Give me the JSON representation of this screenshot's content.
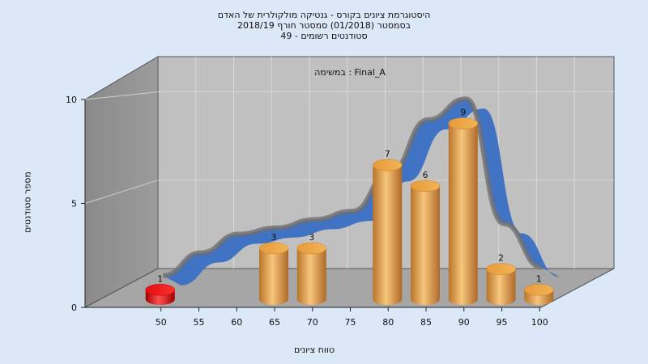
{
  "chart_data": {
    "type": "bar",
    "title_lines": [
      "היסטוגרמת ציונים בקורס - גנטיקה מולקולרית של האדם",
      "בסמסטר  (01/2018)  סמסטר חורף 2018/19",
      "סטודנטים רשומים - 49"
    ],
    "inner_title": "במשימה : Final_A",
    "xlabel": "טווח ציונים",
    "ylabel": "מספר סטודנטים",
    "x_ticks": [
      "50",
      "55",
      "60",
      "65",
      "70",
      "75",
      "80",
      "85",
      "90",
      "95",
      "100"
    ],
    "y_ticks": [
      "0",
      "5",
      "10"
    ],
    "ylim": [
      0,
      10
    ],
    "bars": [
      {
        "x": 50,
        "value": 1,
        "label": "1",
        "color": "red"
      },
      {
        "x": 65,
        "value": 3,
        "label": "3",
        "color": "orange"
      },
      {
        "x": 70,
        "value": 3,
        "label": "3",
        "color": "orange"
      },
      {
        "x": 80,
        "value": 7,
        "label": "7",
        "color": "orange"
      },
      {
        "x": 85,
        "value": 6,
        "label": "6",
        "color": "orange"
      },
      {
        "x": 90,
        "value": 9,
        "label": "9",
        "color": "orange"
      },
      {
        "x": 95,
        "value": 2,
        "label": "2",
        "color": "orange"
      },
      {
        "x": 100,
        "value": 1,
        "label": "1",
        "color": "orange"
      }
    ],
    "curve": {
      "type": "area-ribbon",
      "colors": {
        "front": "#3a6fc4",
        "back": "#777777"
      },
      "points": [
        [
          50,
          0.5
        ],
        [
          55,
          1.6
        ],
        [
          60,
          2.5
        ],
        [
          65,
          2.8
        ],
        [
          70,
          3.2
        ],
        [
          75,
          3.6
        ],
        [
          80,
          5.5
        ],
        [
          85,
          8.0
        ],
        [
          90,
          9.0
        ],
        [
          95,
          3.0
        ],
        [
          100,
          0.9
        ]
      ]
    },
    "grid": true,
    "colors": {
      "background": "#dbe8f7",
      "plot": "#c0c0c0",
      "side_wall": "#8c8c8c",
      "bar": "#e8a850",
      "bar_red": "#e01010"
    }
  }
}
